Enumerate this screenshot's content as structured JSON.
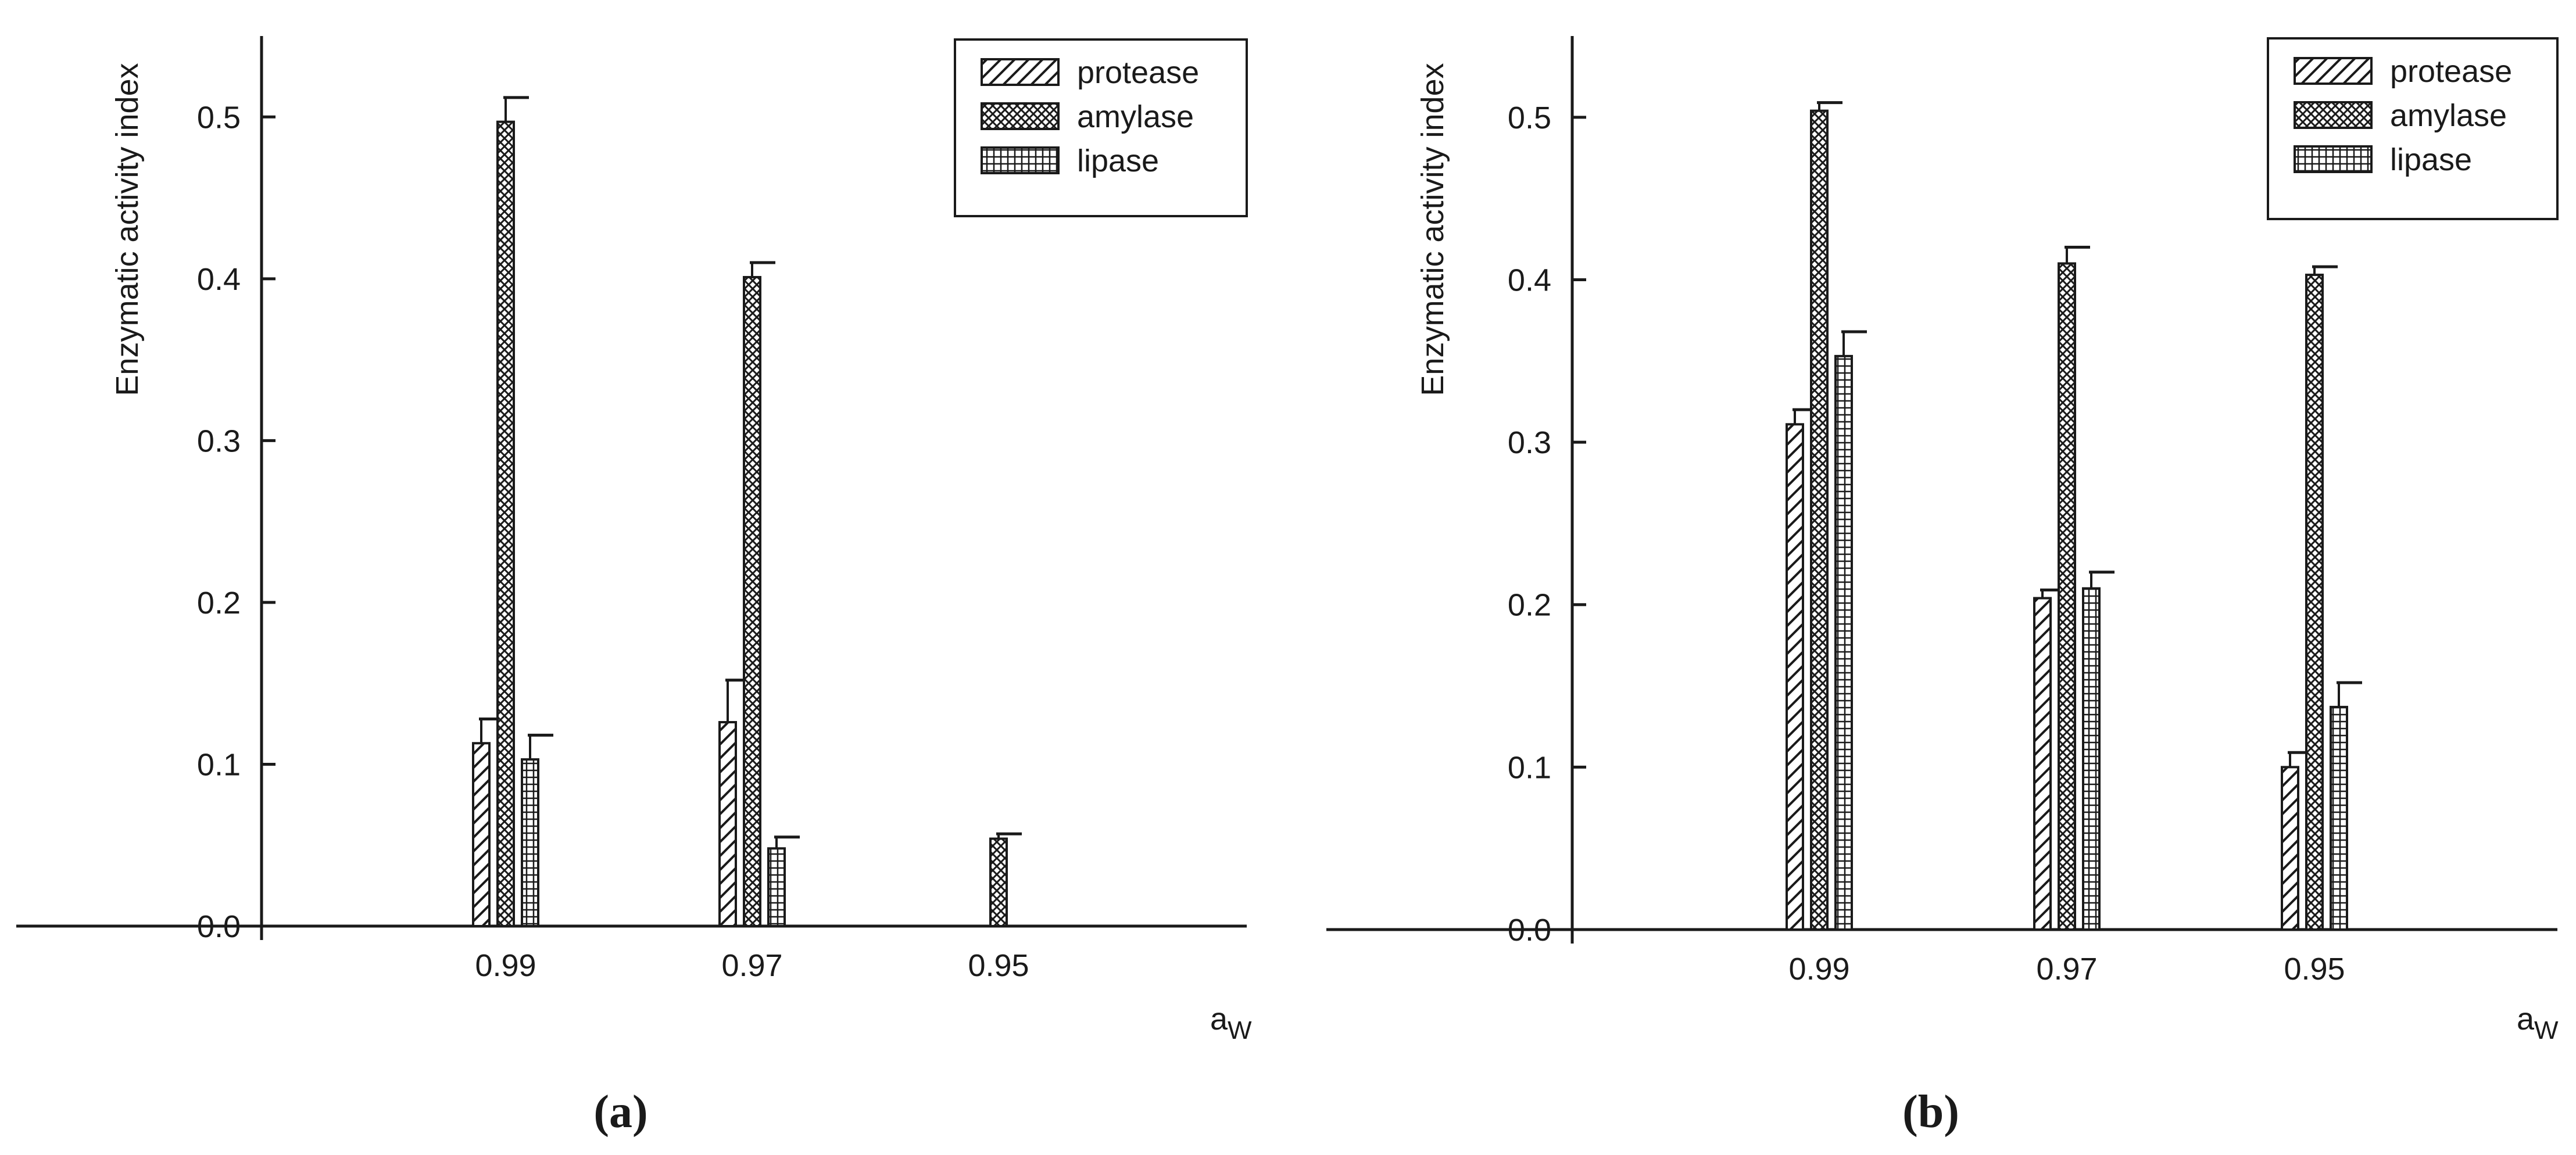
{
  "chart_data": [
    {
      "type": "bar",
      "panel_label": "(a)",
      "ylabel": "Enzymatic activity index",
      "xlabel_main": "a",
      "xlabel_sub": "W",
      "ylim": [
        0,
        0.55
      ],
      "yticks": [
        "0.0",
        "0.1",
        "0.2",
        "0.3",
        "0.4",
        "0.5"
      ],
      "categories": [
        "0.99",
        "0.97",
        "0.95"
      ],
      "grid": false,
      "legend_position": "top-right",
      "series": [
        {
          "name": "protease",
          "values": [
            0.113,
            0.126,
            0
          ],
          "errors": [
            0.015,
            0.026,
            0
          ]
        },
        {
          "name": "amylase",
          "values": [
            0.497,
            0.401,
            0.054
          ],
          "errors": [
            0.015,
            0.009,
            0.003
          ]
        },
        {
          "name": "lipase",
          "values": [
            0.103,
            0.048,
            0
          ],
          "errors": [
            0.015,
            0.007,
            0
          ]
        }
      ]
    },
    {
      "type": "bar",
      "panel_label": "(b)",
      "ylabel": "Enzymatic activity index",
      "xlabel_main": "a",
      "xlabel_sub": "W",
      "ylim": [
        0,
        0.55
      ],
      "yticks": [
        "0.0",
        "0.1",
        "0.2",
        "0.3",
        "0.4",
        "0.5"
      ],
      "categories": [
        "0.99",
        "0.97",
        "0.95"
      ],
      "grid": false,
      "legend_position": "top-right",
      "series": [
        {
          "name": "protease",
          "values": [
            0.311,
            0.204,
            0.1
          ],
          "errors": [
            0.009,
            0.005,
            0.009
          ]
        },
        {
          "name": "amylase",
          "values": [
            0.504,
            0.41,
            0.403
          ],
          "errors": [
            0.005,
            0.01,
            0.005
          ]
        },
        {
          "name": "lipase",
          "values": [
            0.353,
            0.21,
            0.137
          ],
          "errors": [
            0.015,
            0.01,
            0.015
          ]
        }
      ]
    }
  ]
}
